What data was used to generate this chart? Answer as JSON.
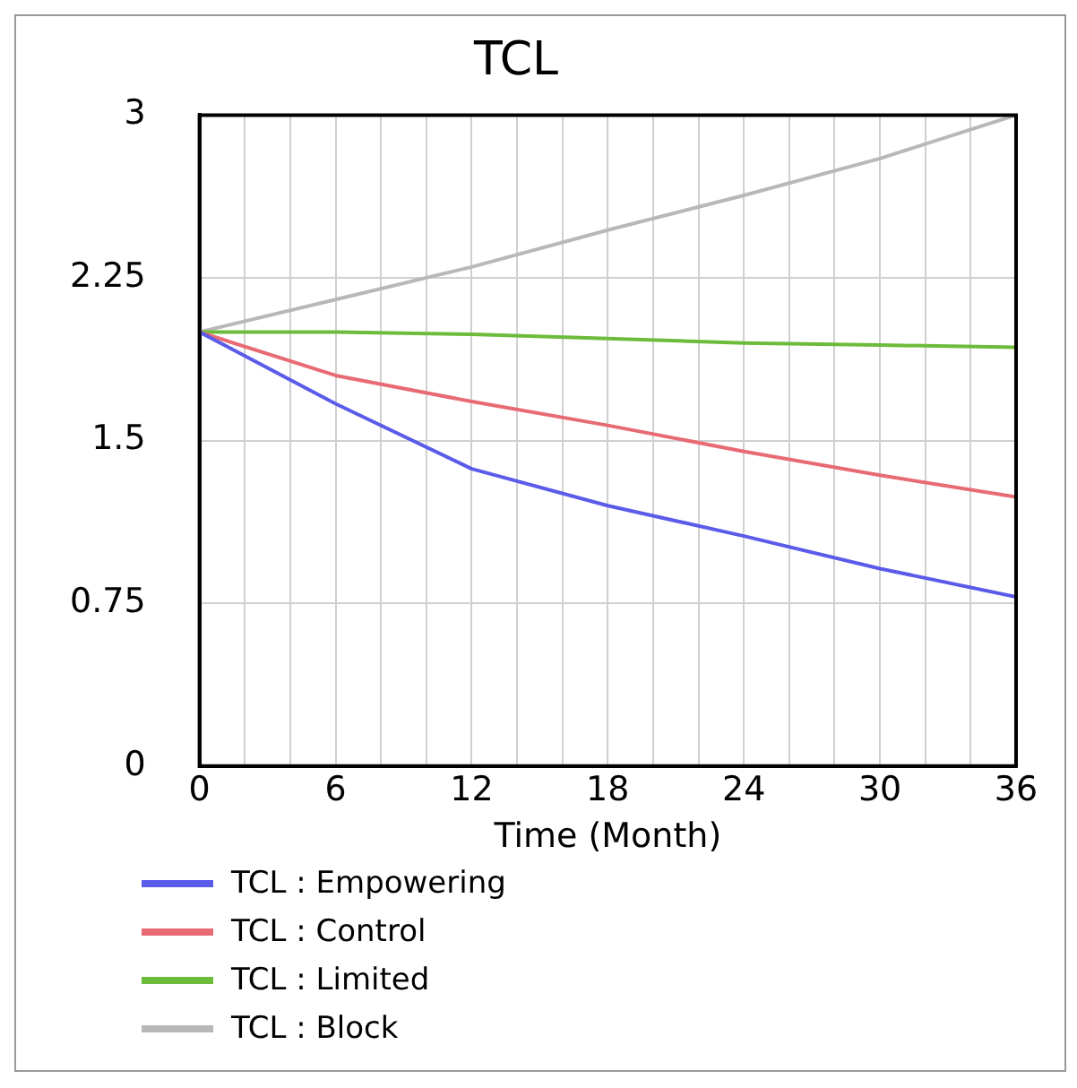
{
  "chart_data": {
    "type": "line",
    "title": "TCL",
    "xlabel": "Time (Month)",
    "x": [
      0,
      6,
      12,
      18,
      24,
      30,
      36
    ],
    "xlim": [
      0,
      36
    ],
    "xticks": [
      0,
      {
        "value": 2,
        "label": null
      },
      {
        "value": 4,
        "label": null
      },
      6,
      {
        "value": 8,
        "label": null
      },
      {
        "value": 10,
        "label": null
      },
      12,
      {
        "value": 14,
        "label": null
      },
      {
        "value": 16,
        "label": null
      },
      18,
      {
        "value": 20,
        "label": null
      },
      {
        "value": 22,
        "label": null
      },
      24,
      {
        "value": 26,
        "label": null
      },
      {
        "value": 28,
        "label": null
      },
      30,
      {
        "value": 32,
        "label": null
      },
      {
        "value": 34,
        "label": null
      },
      36
    ],
    "ylim": [
      0,
      3
    ],
    "yticks": [
      0,
      0.75,
      1.5,
      2.25,
      3
    ],
    "grid": true,
    "legend": "bottom",
    "marker": "none",
    "line_style": "solid",
    "series": [
      {
        "name": "TCL : Empowering",
        "color": "#5b5bea",
        "values": [
          2,
          1.67,
          1.37,
          1.2,
          1.06,
          0.91,
          0.78
        ]
      },
      {
        "name": "TCL : Control",
        "color": "#e86a72",
        "values": [
          2,
          1.8,
          1.68,
          1.57,
          1.45,
          1.34,
          1.24
        ]
      },
      {
        "name": "TCL : Limited",
        "color": "#6dbb3a",
        "values": [
          2,
          2,
          1.99,
          1.97,
          1.95,
          1.94,
          1.93
        ]
      },
      {
        "name": "TCL : Block",
        "color": "#b8b8b8",
        "values": [
          2,
          2.15,
          2.3,
          2.47,
          2.63,
          2.8,
          3
        ]
      }
    ]
  }
}
